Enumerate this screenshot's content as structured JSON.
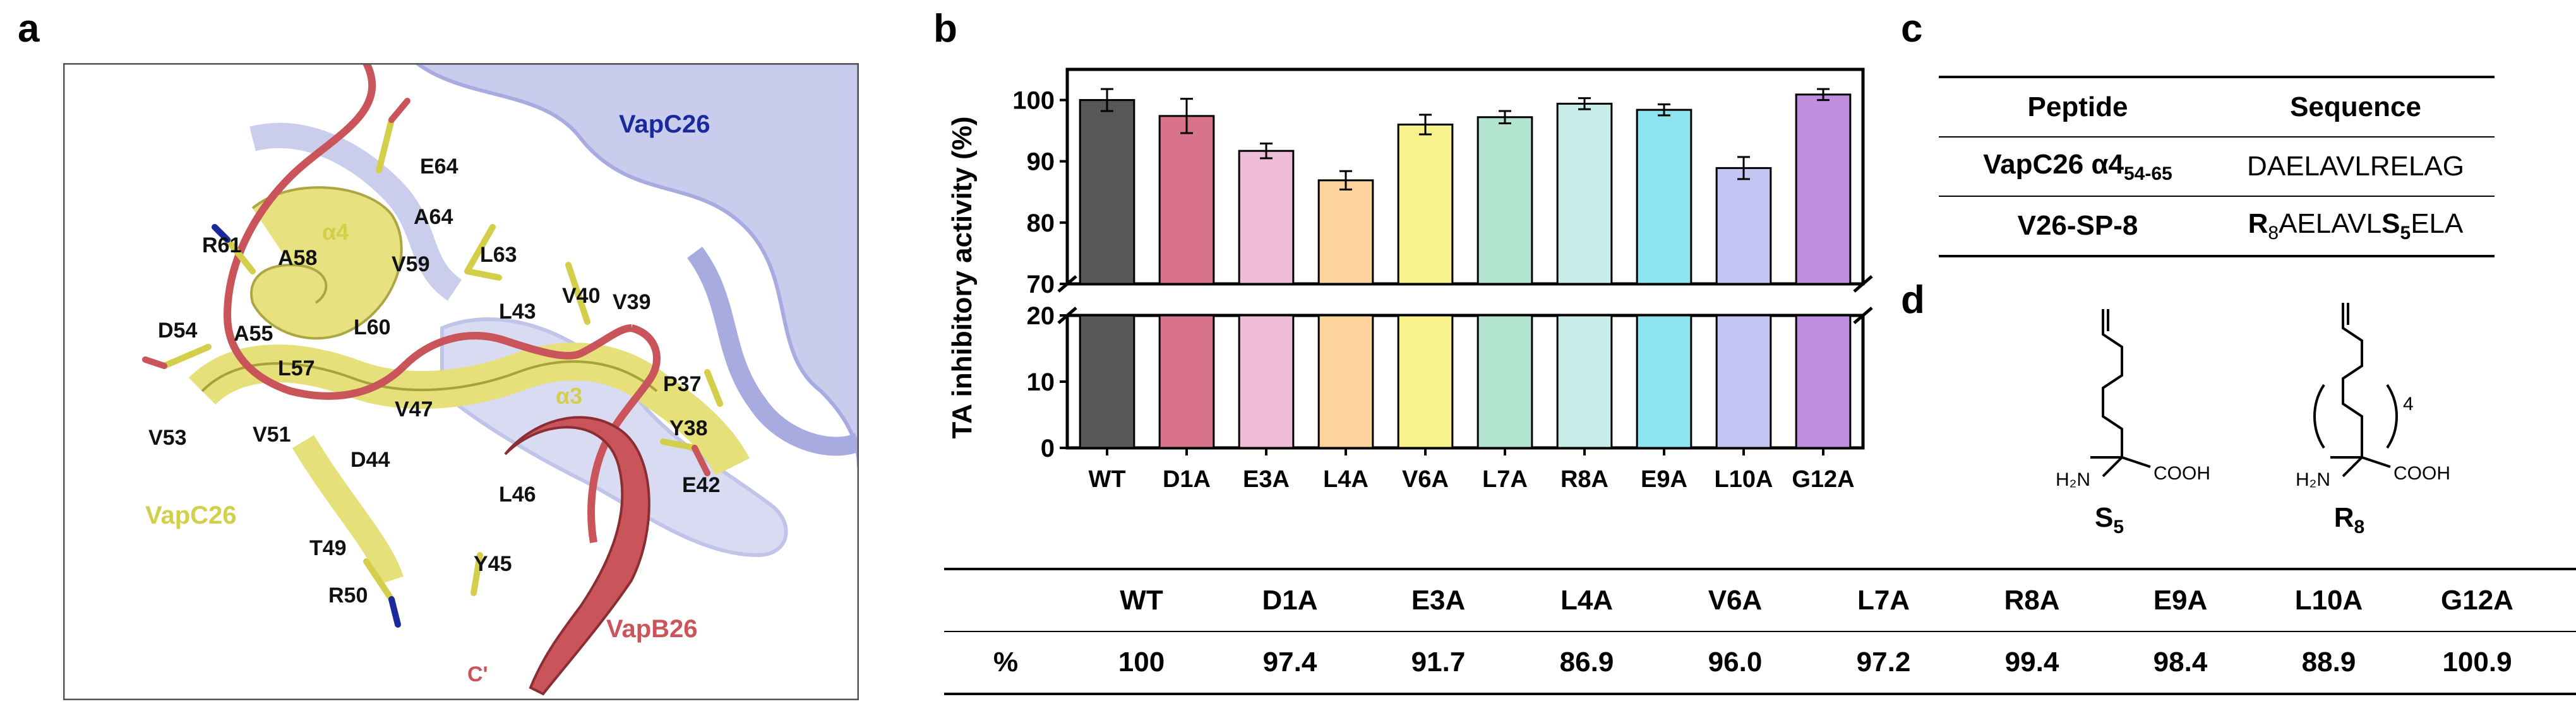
{
  "panel_labels": {
    "a": "a",
    "b": "b",
    "c": "c",
    "d": "d"
  },
  "panel_a": {
    "protein_labels": {
      "vapc26_blue": "VapC26",
      "vapc26_yellow": "VapC26",
      "vapb26": "VapB26"
    },
    "terminus": "C'",
    "helix_labels": {
      "a4": "α4",
      "a3": "α3"
    },
    "residues": [
      "E64",
      "A64",
      "L63",
      "R61",
      "A58",
      "V59",
      "V40",
      "V39",
      "L43",
      "D54",
      "A55",
      "L60",
      "L57",
      "P37",
      "V47",
      "Y38",
      "V53",
      "V51",
      "D44",
      "E42",
      "L46",
      "T49",
      "Y45",
      "R50"
    ],
    "colors": {
      "yellow_helix": "#e6e07a",
      "red_chain": "#c9555a",
      "blue_bg": "#8a8fd6",
      "residue_label_yellow": "#d4cf4a",
      "residue_label_red": "#c9555a",
      "residue_label_blue": "#1a2a9a"
    }
  },
  "chart_data": {
    "type": "bar",
    "ylabel": "TA inhibitory activity (%)",
    "xlabel": "",
    "categories": [
      "WT",
      "D1A",
      "E3A",
      "L4A",
      "V6A",
      "L7A",
      "R8A",
      "E9A",
      "L10A",
      "G12A"
    ],
    "values": [
      100,
      97.4,
      91.7,
      86.9,
      96.0,
      97.2,
      99.4,
      98.4,
      88.9,
      100.9
    ],
    "errors": [
      1.8,
      2.8,
      1.2,
      1.5,
      1.6,
      1.0,
      0.9,
      0.9,
      1.8,
      0.9
    ],
    "colors": [
      "#575759",
      "#d9738b",
      "#f0bdd9",
      "#fcd49c",
      "#f7f38a",
      "#b3e4cf",
      "#c8ede9",
      "#8ee4ee",
      "#c3c5f2",
      "#c08ede"
    ],
    "y_axis_segments": [
      {
        "ylim": [
          70,
          105
        ],
        "ticks": [
          70,
          80,
          90,
          100
        ]
      },
      {
        "ylim": [
          0,
          20
        ],
        "ticks": [
          0,
          10,
          20
        ]
      }
    ],
    "broken_axis": true
  },
  "table_c": {
    "headers": [
      "Peptide",
      "Sequence"
    ],
    "rows": [
      {
        "peptide_main": "VapC26 α4",
        "peptide_sub": "54-65",
        "sequence": "DAELAVLRELAG"
      },
      {
        "peptide_main": "V26-SP-8",
        "seq_parts": [
          "R",
          "8",
          "AELAVL",
          "S",
          "5",
          "ELA"
        ]
      }
    ]
  },
  "panel_d": {
    "s5": {
      "name_main": "S",
      "name_sub": "5",
      "amine": "H₂N",
      "acid": "COOH"
    },
    "r8": {
      "name_main": "R",
      "name_sub": "8",
      "amine": "H₂N",
      "acid": "COOH",
      "repeat": "4"
    }
  },
  "table_bottom": {
    "header": [
      "",
      "WT",
      "D1A",
      "E3A",
      "L4A",
      "V6A",
      "L7A",
      "R8A",
      "E9A",
      "L10A",
      "G12A"
    ],
    "row_label": "%",
    "values": [
      "100",
      "97.4",
      "91.7",
      "86.9",
      "96.0",
      "97.2",
      "99.4",
      "98.4",
      "88.9",
      "100.9"
    ]
  }
}
